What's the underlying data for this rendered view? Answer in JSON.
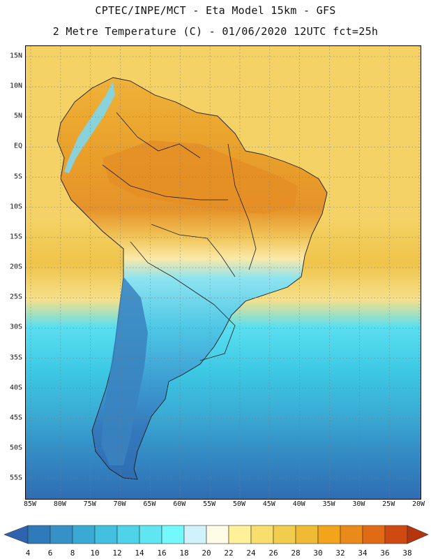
{
  "header": {
    "line1": "CPTEC/INPE/MCT -  Eta Model 15km - GFS",
    "line2": "2 Metre Temperature (C) - 01/06/2020 12UTC fct=25h"
  },
  "map": {
    "lat_labels": [
      "15N",
      "10N",
      "5N",
      "EQ",
      "5S",
      "10S",
      "15S",
      "20S",
      "25S",
      "30S",
      "35S",
      "40S",
      "45S",
      "50S",
      "55S"
    ],
    "lon_labels": [
      "85W",
      "80W",
      "75W",
      "70W",
      "65W",
      "60W",
      "55W",
      "50W",
      "45W",
      "40W",
      "35W",
      "30W",
      "25W",
      "20W"
    ],
    "ocean_colors": [
      "#f4d265",
      "#f4d265",
      "#efc44a",
      "#f6e08a",
      "#5adff0",
      "#3cc8e4",
      "#3aa9d3",
      "#338bc4",
      "#2f6db3"
    ],
    "land_colors": {
      "tropics": "#e9a12a",
      "hot": "#e48e24",
      "andes": "#7fd7ec",
      "plateau": "#fbe9a8",
      "south": "#43b7e0",
      "patagonia": "#3a82c0"
    }
  },
  "legend": {
    "values": [
      "4",
      "6",
      "8",
      "10",
      "12",
      "14",
      "16",
      "18",
      "20",
      "22",
      "24",
      "26",
      "28",
      "30",
      "32",
      "34",
      "36",
      "38"
    ],
    "colors": [
      "#2d64ad",
      "#2f7ab9",
      "#3691c7",
      "#3aa9d4",
      "#43c0df",
      "#4fd3e8",
      "#5fe6f2",
      "#73f9fb",
      "#cff2fb",
      "#fffbe6",
      "#fff19a",
      "#f8de6d",
      "#f2cc4d",
      "#efbb34",
      "#f2a51a",
      "#ea8a1a",
      "#e06b14",
      "#cf4a10",
      "#b4350e"
    ]
  }
}
